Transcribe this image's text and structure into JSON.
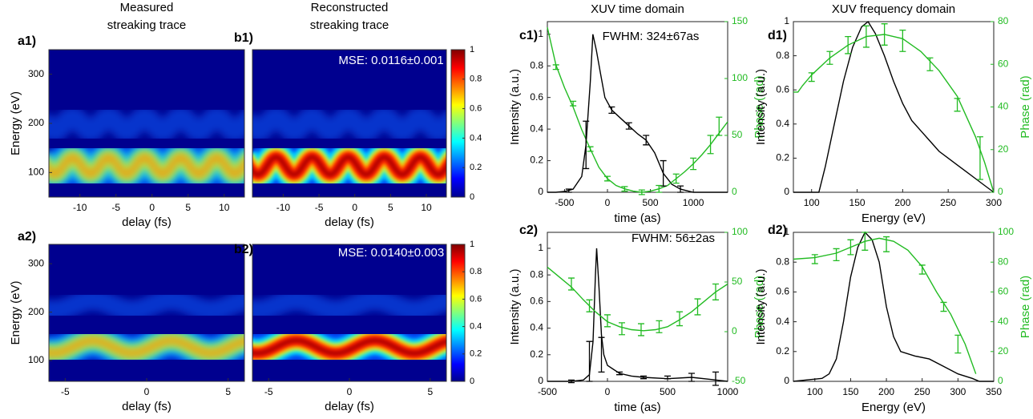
{
  "chart_data": [
    {
      "type": "heatmap",
      "panel_label": "a1)",
      "title_lines": [
        "Measured",
        "streaking trace"
      ],
      "xlabel": "delay (fs)",
      "ylabel": "Energy (eV)",
      "xlim": [
        -14.3,
        12.8
      ],
      "xticks": [
        -10,
        -5,
        0,
        5,
        10
      ],
      "ylim": [
        50,
        350
      ],
      "yticks": [
        100,
        200,
        300
      ]
    },
    {
      "type": "heatmap",
      "panel_label": "b1)",
      "title_lines": [
        "Reconstructed",
        "streaking trace"
      ],
      "xlabel": "delay (fs)",
      "xlim": [
        -14.3,
        12.8
      ],
      "xticks": [
        -10,
        -5,
        0,
        5,
        10
      ],
      "annotation": "MSE: 0.0116±0.001",
      "colorbar": {
        "lim": [
          0,
          1
        ],
        "ticks": [
          0,
          0.2,
          0.4,
          0.6,
          0.8,
          1
        ]
      }
    },
    {
      "type": "line",
      "panel_label": "c1)",
      "title": "XUV time domain",
      "xlabel": "time (as)",
      "ylabel": "Intensity (a.u.)",
      "y2label": "Phase (rad)",
      "annotation": "FWHM: 324±67as",
      "xlim": [
        -700,
        1400
      ],
      "xticks": [
        -500,
        0,
        500,
        1000
      ],
      "ylim": [
        0,
        1.08
      ],
      "yticks": [
        0,
        0.2,
        0.4,
        0.6,
        0.8,
        1
      ],
      "y2lim": [
        0,
        150
      ],
      "y2ticks": [
        0,
        50,
        100,
        150
      ],
      "series": [
        {
          "color": "#000000",
          "x": [
            -700,
            -600,
            -500,
            -400,
            -300,
            -250,
            -200,
            -170,
            -130,
            -80,
            -30,
            50,
            150,
            250,
            350,
            450,
            550,
            650,
            750,
            850,
            1000,
            1200,
            1400
          ],
          "values": [
            0,
            0,
            0.005,
            0.02,
            0.1,
            0.3,
            0.7,
            1,
            0.9,
            0.75,
            0.6,
            0.52,
            0.47,
            0.42,
            0.37,
            0.33,
            0.25,
            0.12,
            0.05,
            0.02,
            0,
            0,
            0
          ]
        },
        {
          "color": "#22bb22",
          "axis": "y2",
          "x": [
            -700,
            -600,
            -500,
            -400,
            -300,
            -200,
            -100,
            0,
            100,
            200,
            300,
            400,
            500,
            600,
            700,
            800,
            900,
            1000,
            1100,
            1200,
            1300,
            1400
          ],
          "values": [
            145,
            112,
            92,
            75,
            55,
            38,
            22,
            12,
            6,
            3,
            1,
            0,
            1,
            3,
            6,
            12,
            18,
            25,
            33,
            42,
            52,
            62
          ]
        }
      ],
      "errorbars": [
        {
          "color": "#000000",
          "x": [
            -450,
            -250,
            50,
            250,
            450,
            650,
            850
          ],
          "values": [
            0.01,
            0.3,
            0.52,
            0.42,
            0.33,
            0.12,
            0.02
          ],
          "errors": [
            0.01,
            0.15,
            0.02,
            0.02,
            0.03,
            0.08,
            0.02
          ]
        },
        {
          "color": "#22bb22",
          "axis": "y2",
          "x": [
            -600,
            -400,
            -200,
            0,
            200,
            400,
            600,
            800,
            1000,
            1200,
            1300
          ],
          "values": [
            110,
            78,
            38,
            12,
            3,
            0,
            3,
            12,
            25,
            42,
            58
          ],
          "errors": [
            2,
            2,
            2,
            2,
            2,
            2,
            3,
            4,
            5,
            8,
            8
          ]
        }
      ]
    },
    {
      "type": "line",
      "panel_label": "d1)",
      "title": "XUV frequency domain",
      "xlabel": "Energy (eV)",
      "ylabel": "Intensity (a.u.)",
      "y2label": "Phase (rad)",
      "xlim": [
        80,
        300
      ],
      "xticks": [
        100,
        150,
        200,
        250,
        300
      ],
      "ylim": [
        0,
        1
      ],
      "yticks": [
        0,
        0.2,
        0.4,
        0.6,
        0.8,
        1
      ],
      "y2lim": [
        0,
        80
      ],
      "y2ticks": [
        0,
        20,
        40,
        60,
        80
      ],
      "series": [
        {
          "color": "#000000",
          "x": [
            80,
            108,
            115,
            125,
            135,
            145,
            155,
            162,
            170,
            180,
            190,
            200,
            210,
            220,
            230,
            240,
            250,
            260,
            270,
            280,
            290,
            300
          ],
          "values": [
            0,
            0,
            0.15,
            0.4,
            0.65,
            0.85,
            0.97,
            1,
            0.93,
            0.8,
            0.65,
            0.52,
            0.42,
            0.36,
            0.3,
            0.24,
            0.2,
            0.16,
            0.12,
            0.08,
            0.04,
            0
          ]
        },
        {
          "color": "#22bb22",
          "axis": "y2",
          "x": [
            80,
            85,
            90,
            100,
            120,
            140,
            160,
            180,
            200,
            220,
            240,
            260,
            280,
            290,
            300
          ],
          "values": [
            47,
            47,
            50,
            55,
            63,
            69,
            73,
            74,
            72,
            66,
            57,
            45,
            26,
            14,
            0
          ]
        }
      ],
      "errorbars": [
        {
          "color": "#22bb22",
          "axis": "y2",
          "x": [
            100,
            120,
            140,
            160,
            180,
            200,
            230,
            260,
            285
          ],
          "values": [
            54,
            63,
            69,
            73,
            74,
            71,
            60,
            41,
            16
          ],
          "errors": [
            2,
            3,
            4,
            5,
            5,
            5,
            3,
            3,
            10
          ]
        }
      ]
    },
    {
      "type": "heatmap",
      "panel_label": "a2)",
      "xlabel": "delay (fs)",
      "ylabel": "Energy (eV)",
      "xlim": [
        -6,
        6
      ],
      "xticks": [
        -5,
        0,
        5
      ],
      "ylim": [
        57,
        340
      ],
      "yticks": [
        100,
        200,
        300
      ]
    },
    {
      "type": "heatmap",
      "panel_label": "b2)",
      "xlabel": "delay (fs)",
      "xlim": [
        -6,
        6
      ],
      "xticks": [
        -5,
        0,
        5
      ],
      "annotation": "MSE: 0.0140±0.003",
      "colorbar": {
        "lim": [
          0,
          1
        ],
        "ticks": [
          0,
          0.2,
          0.4,
          0.6,
          0.8,
          1
        ]
      }
    },
    {
      "type": "line",
      "panel_label": "c2)",
      "xlabel": "time (as)",
      "ylabel": "Intensity (a.u.)",
      "y2label": "Phase (rad)",
      "annotation": "FWHM: 56±2as",
      "xlim": [
        -500,
        1000
      ],
      "xticks": [
        -500,
        0,
        500,
        1000
      ],
      "ylim": [
        0,
        1.12
      ],
      "yticks": [
        0,
        0.2,
        0.4,
        0.6,
        0.8,
        1
      ],
      "y2lim": [
        -50,
        100
      ],
      "y2ticks": [
        -50,
        0,
        50,
        100
      ],
      "series": [
        {
          "color": "#000000",
          "x": [
            -500,
            -300,
            -200,
            -150,
            -120,
            -100,
            -90,
            -70,
            -50,
            -30,
            0,
            100,
            200,
            300,
            500,
            700,
            900,
            1000
          ],
          "values": [
            0,
            0,
            0.01,
            0.05,
            0.3,
            0.8,
            1,
            0.7,
            0.35,
            0.2,
            0.12,
            0.06,
            0.04,
            0.03,
            0.02,
            0.03,
            0.01,
            0
          ]
        },
        {
          "color": "#22bb22",
          "axis": "y2",
          "x": [
            -500,
            -400,
            -300,
            -200,
            -100,
            0,
            100,
            200,
            300,
            400,
            500,
            600,
            700,
            800,
            900,
            1000
          ],
          "values": [
            65,
            55,
            45,
            32,
            20,
            10,
            5,
            2,
            1,
            2,
            5,
            12,
            20,
            30,
            40,
            48
          ]
        }
      ],
      "errorbars": [
        {
          "color": "#000000",
          "x": [
            -300,
            -150,
            -50,
            100,
            300,
            500,
            700,
            900
          ],
          "values": [
            0,
            0.15,
            0.2,
            0.06,
            0.03,
            0.03,
            0.03,
            0.02
          ],
          "errors": [
            0.01,
            0.15,
            0.13,
            0.01,
            0.01,
            0.01,
            0.03,
            0.05
          ]
        },
        {
          "color": "#22bb22",
          "axis": "y2",
          "x": [
            -300,
            -150,
            0,
            120,
            280,
            430,
            600,
            750,
            900
          ],
          "values": [
            48,
            26,
            11,
            3,
            2,
            5,
            13,
            25,
            40
          ],
          "errors": [
            6,
            6,
            6,
            6,
            6,
            6,
            7,
            8,
            8
          ]
        }
      ]
    },
    {
      "type": "line",
      "panel_label": "d2)",
      "xlabel": "Energy (eV)",
      "ylabel": "Intensity (a.u.)",
      "y2label": "Phase (rad)",
      "xlim": [
        70,
        350
      ],
      "xticks": [
        100,
        150,
        200,
        250,
        300,
        350
      ],
      "ylim": [
        0,
        1
      ],
      "yticks": [
        0,
        0.2,
        0.4,
        0.6,
        0.8,
        1
      ],
      "y2lim": [
        0,
        100
      ],
      "y2ticks": [
        0,
        20,
        40,
        60,
        80,
        100
      ],
      "series": [
        {
          "color": "#000000",
          "x": [
            70,
            110,
            120,
            130,
            140,
            150,
            160,
            170,
            180,
            190,
            200,
            210,
            220,
            240,
            260,
            280,
            300,
            320,
            330,
            350
          ],
          "values": [
            0,
            0.02,
            0.05,
            0.15,
            0.4,
            0.7,
            0.9,
            1,
            0.95,
            0.8,
            0.5,
            0.3,
            0.2,
            0.17,
            0.15,
            0.1,
            0.05,
            0.02,
            0,
            0
          ]
        },
        {
          "color": "#22bb22",
          "axis": "y2",
          "x": [
            70,
            100,
            130,
            150,
            170,
            190,
            210,
            230,
            250,
            270,
            290,
            310,
            325
          ],
          "values": [
            82,
            83,
            86,
            90,
            94,
            96,
            94,
            88,
            77,
            60,
            45,
            25,
            5
          ]
        }
      ],
      "errorbars": [
        {
          "color": "#22bb22",
          "axis": "y2",
          "x": [
            100,
            130,
            150,
            170,
            200,
            250,
            280,
            300
          ],
          "values": [
            82,
            85,
            90,
            94,
            92,
            75,
            50,
            25
          ],
          "errors": [
            3,
            4,
            5,
            6,
            5,
            3,
            3,
            6
          ]
        }
      ]
    }
  ]
}
